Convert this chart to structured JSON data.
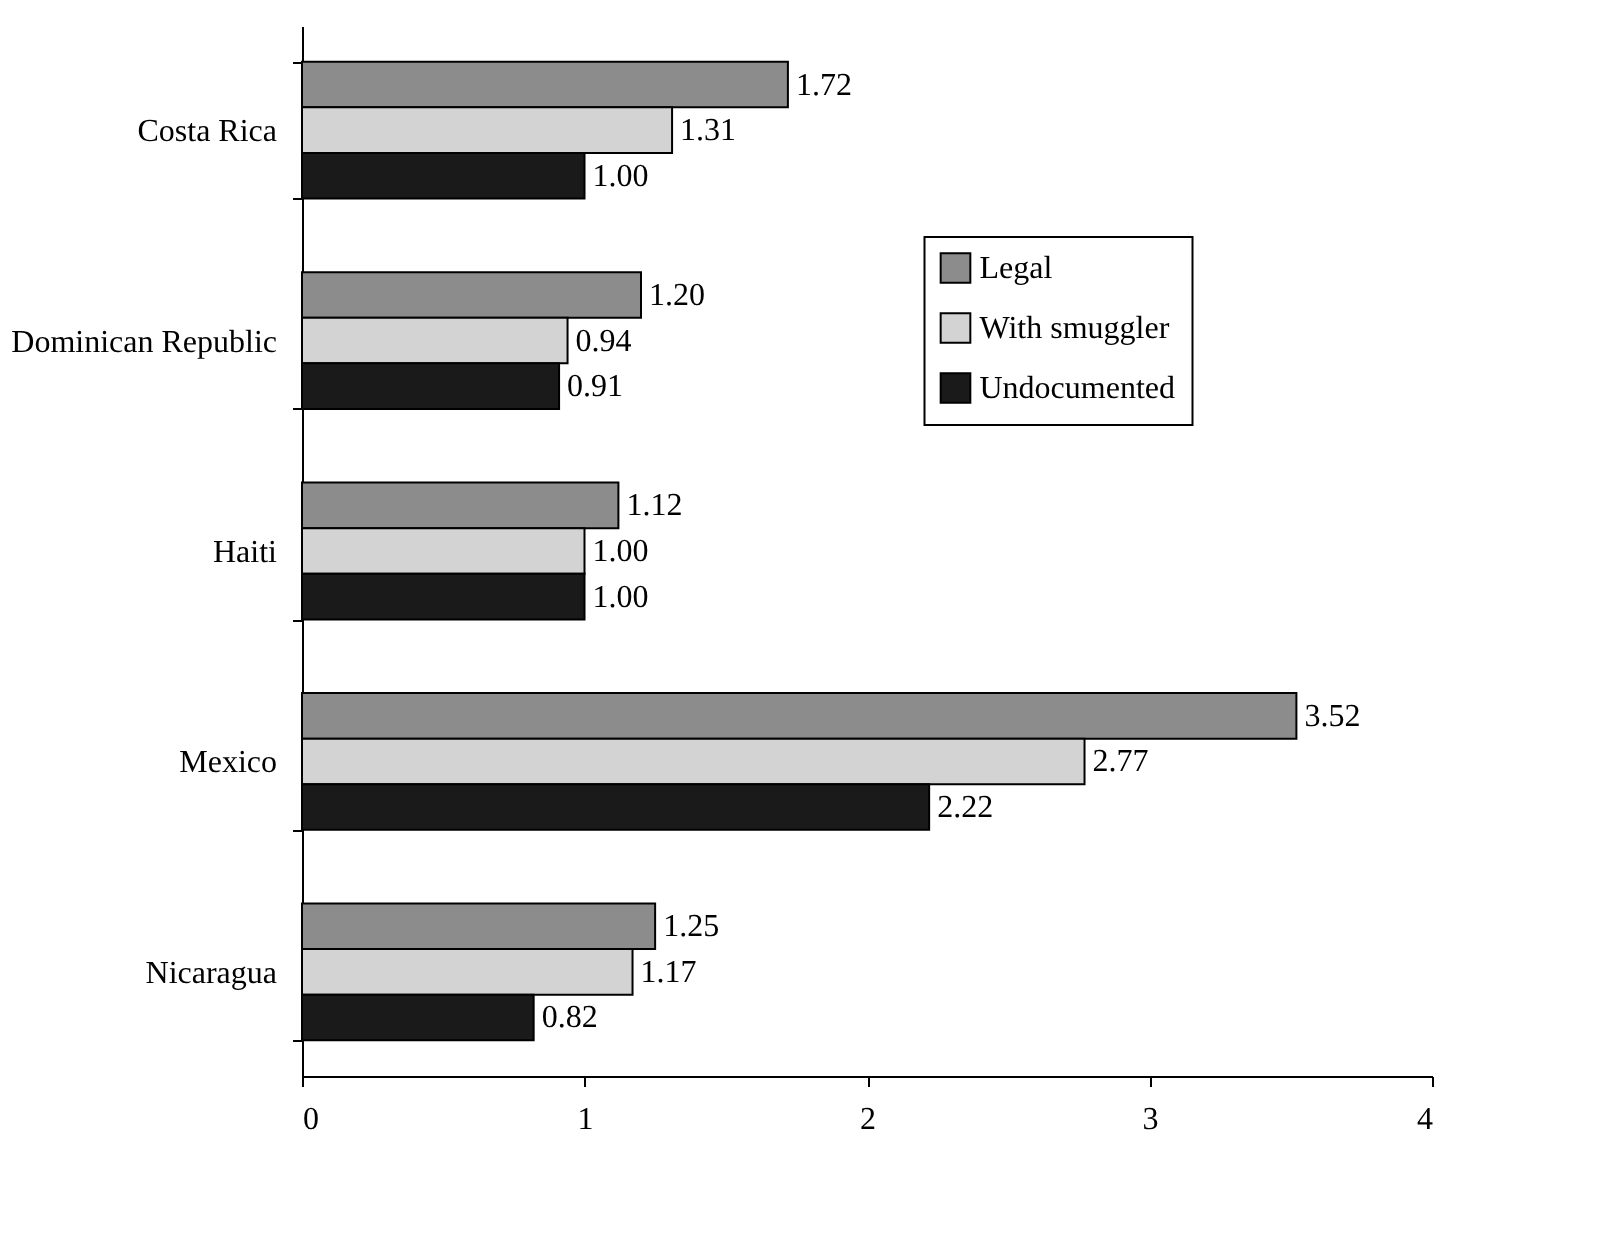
{
  "chart_data": {
    "type": "bar",
    "orientation": "horizontal",
    "categories": [
      "Costa Rica",
      "Dominican Republic",
      "Haiti",
      "Mexico",
      "Nicaragua"
    ],
    "series": [
      {
        "name": "Legal",
        "color": "#8c8c8c",
        "values": [
          1.72,
          1.2,
          1.12,
          3.52,
          1.25
        ],
        "value_labels": [
          "1.72",
          "1.20",
          "1.12",
          "3.52",
          "1.25"
        ]
      },
      {
        "name": "With smuggler",
        "color": "#d3d3d3",
        "values": [
          1.31,
          0.94,
          1.0,
          2.77,
          1.17
        ],
        "value_labels": [
          "1.31",
          "0.94",
          "1.00",
          "2.77",
          "1.17"
        ]
      },
      {
        "name": "Undocumented",
        "color": "#1a1a1a",
        "values": [
          1.0,
          0.91,
          1.0,
          2.22,
          0.82
        ],
        "value_labels": [
          "1.00",
          "0.91",
          "1.00",
          "2.22",
          "0.82"
        ]
      }
    ],
    "xlim": [
      0,
      4
    ],
    "xticks": [
      0,
      1,
      2,
      3,
      4
    ],
    "legend": "right"
  }
}
